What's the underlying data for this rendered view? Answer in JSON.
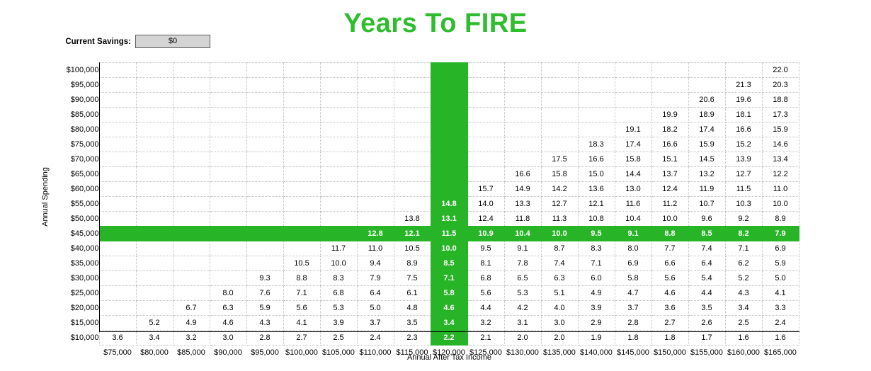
{
  "title": "Years To FIRE",
  "controls": {
    "current_savings_label": "Current Savings:",
    "current_savings_value": "$0"
  },
  "axes": {
    "x_label": "Annual After Tax Income",
    "y_label": "Annual Spending"
  },
  "colors": {
    "title_green": "#2dbd2d",
    "highlight_green": "#27b427",
    "grid_line": "#bfbfbf",
    "input_fill": "#d4d4d4"
  },
  "chart_data": {
    "type": "table",
    "title": "Years To FIRE",
    "xlabel": "Annual After Tax Income",
    "ylabel": "Annual Spending",
    "highlight_column": "$120,000",
    "highlight_row": "$45,000",
    "columns": [
      "$75,000",
      "$80,000",
      "$85,000",
      "$90,000",
      "$95,000",
      "$100,000",
      "$105,000",
      "$110,000",
      "$115,000",
      "$120,000",
      "$125,000",
      "$130,000",
      "$135,000",
      "$140,000",
      "$145,000",
      "$150,000",
      "$155,000",
      "$160,000",
      "$165,000"
    ],
    "rows": [
      {
        "label": "$100,000",
        "values": [
          "",
          "",
          "",
          "",
          "",
          "",
          "",
          "",
          "",
          "",
          "",
          "",
          "",
          "",
          "",
          "",
          "",
          "",
          "22.0"
        ]
      },
      {
        "label": "$95,000",
        "values": [
          "",
          "",
          "",
          "",
          "",
          "",
          "",
          "",
          "",
          "",
          "",
          "",
          "",
          "",
          "",
          "",
          "",
          "21.3",
          "20.3"
        ]
      },
      {
        "label": "$90,000",
        "values": [
          "",
          "",
          "",
          "",
          "",
          "",
          "",
          "",
          "",
          "",
          "",
          "",
          "",
          "",
          "",
          "",
          "20.6",
          "19.6",
          "18.8"
        ]
      },
      {
        "label": "$85,000",
        "values": [
          "",
          "",
          "",
          "",
          "",
          "",
          "",
          "",
          "",
          "",
          "",
          "",
          "",
          "",
          "",
          "19.9",
          "18.9",
          "18.1",
          "17.3"
        ]
      },
      {
        "label": "$80,000",
        "values": [
          "",
          "",
          "",
          "",
          "",
          "",
          "",
          "",
          "",
          "",
          "",
          "",
          "",
          "",
          "19.1",
          "18.2",
          "17.4",
          "16.6",
          "15.9"
        ]
      },
      {
        "label": "$75,000",
        "values": [
          "",
          "",
          "",
          "",
          "",
          "",
          "",
          "",
          "",
          "",
          "",
          "",
          "",
          "18.3",
          "17.4",
          "16.6",
          "15.9",
          "15.2",
          "14.6"
        ]
      },
      {
        "label": "$70,000",
        "values": [
          "",
          "",
          "",
          "",
          "",
          "",
          "",
          "",
          "",
          "",
          "",
          "",
          "17.5",
          "16.6",
          "15.8",
          "15.1",
          "14.5",
          "13.9",
          "13.4"
        ]
      },
      {
        "label": "$65,000",
        "values": [
          "",
          "",
          "",
          "",
          "",
          "",
          "",
          "",
          "",
          "",
          "",
          "16.6",
          "15.8",
          "15.0",
          "14.4",
          "13.7",
          "13.2",
          "12.7",
          "12.2"
        ]
      },
      {
        "label": "$60,000",
        "values": [
          "",
          "",
          "",
          "",
          "",
          "",
          "",
          "",
          "",
          "",
          "15.7",
          "14.9",
          "14.2",
          "13.6",
          "13.0",
          "12.4",
          "11.9",
          "11.5",
          "11.0"
        ]
      },
      {
        "label": "$55,000",
        "values": [
          "",
          "",
          "",
          "",
          "",
          "",
          "",
          "",
          "",
          "14.8",
          "14.0",
          "13.3",
          "12.7",
          "12.1",
          "11.6",
          "11.2",
          "10.7",
          "10.3",
          "10.0"
        ]
      },
      {
        "label": "$50,000",
        "values": [
          "",
          "",
          "",
          "",
          "",
          "",
          "",
          "",
          "13.8",
          "13.1",
          "12.4",
          "11.8",
          "11.3",
          "10.8",
          "10.4",
          "10.0",
          "9.6",
          "9.2",
          "8.9"
        ]
      },
      {
        "label": "$45,000",
        "values": [
          "",
          "",
          "",
          "",
          "",
          "",
          "",
          "12.8",
          "12.1",
          "11.5",
          "10.9",
          "10.4",
          "10.0",
          "9.5",
          "9.1",
          "8.8",
          "8.5",
          "8.2",
          "7.9"
        ]
      },
      {
        "label": "$40,000",
        "values": [
          "",
          "",
          "",
          "",
          "",
          "",
          "11.7",
          "11.0",
          "10.5",
          "10.0",
          "9.5",
          "9.1",
          "8.7",
          "8.3",
          "8.0",
          "7.7",
          "7.4",
          "7.1",
          "6.9"
        ]
      },
      {
        "label": "$35,000",
        "values": [
          "",
          "",
          "",
          "",
          "",
          "10.5",
          "10.0",
          "9.4",
          "8.9",
          "8.5",
          "8.1",
          "7.8",
          "7.4",
          "7.1",
          "6.9",
          "6.6",
          "6.4",
          "6.2",
          "5.9"
        ]
      },
      {
        "label": "$30,000",
        "values": [
          "",
          "",
          "",
          "",
          "9.3",
          "8.8",
          "8.3",
          "7.9",
          "7.5",
          "7.1",
          "6.8",
          "6.5",
          "6.3",
          "6.0",
          "5.8",
          "5.6",
          "5.4",
          "5.2",
          "5.0"
        ]
      },
      {
        "label": "$25,000",
        "values": [
          "",
          "",
          "",
          "8.0",
          "7.6",
          "7.1",
          "6.8",
          "6.4",
          "6.1",
          "5.8",
          "5.6",
          "5.3",
          "5.1",
          "4.9",
          "4.7",
          "4.6",
          "4.4",
          "4.3",
          "4.1"
        ]
      },
      {
        "label": "$20,000",
        "values": [
          "",
          "",
          "6.7",
          "6.3",
          "5.9",
          "5.6",
          "5.3",
          "5.0",
          "4.8",
          "4.6",
          "4.4",
          "4.2",
          "4.0",
          "3.9",
          "3.7",
          "3.6",
          "3.5",
          "3.4",
          "3.3"
        ]
      },
      {
        "label": "$15,000",
        "values": [
          "",
          "5.2",
          "4.9",
          "4.6",
          "4.3",
          "4.1",
          "3.9",
          "3.7",
          "3.5",
          "3.4",
          "3.2",
          "3.1",
          "3.0",
          "2.9",
          "2.8",
          "2.7",
          "2.6",
          "2.5",
          "2.4"
        ]
      },
      {
        "label": "$10,000",
        "values": [
          "3.6",
          "3.4",
          "3.2",
          "3.0",
          "2.8",
          "2.7",
          "2.5",
          "2.4",
          "2.3",
          "2.2",
          "2.1",
          "2.0",
          "2.0",
          "1.9",
          "1.8",
          "1.8",
          "1.7",
          "1.6",
          "1.6"
        ]
      }
    ]
  }
}
